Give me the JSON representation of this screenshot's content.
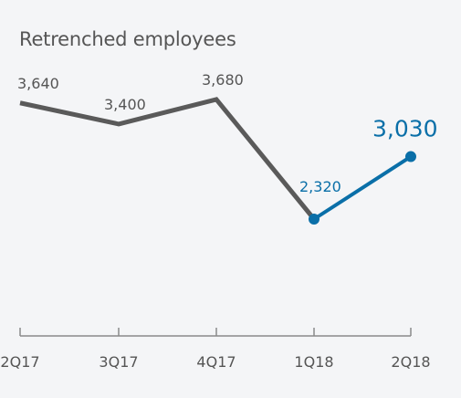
{
  "chart_data": {
    "type": "line",
    "title": "Retrenched employees",
    "xlabel": "",
    "ylabel": "",
    "categories": [
      "2Q17",
      "3Q17",
      "4Q17",
      "1Q18",
      "2Q18"
    ],
    "values": [
      3640,
      3400,
      3680,
      2320,
      3030
    ],
    "value_labels": [
      "3,640",
      "3,400",
      "3,680",
      "2,320",
      "3,030"
    ],
    "grid": false,
    "legend": "none",
    "highlight_from_index": 3,
    "colors": {
      "base_line": "#5a5a5a",
      "highlight": "#0a6fa8",
      "axis": "#8a8a8a",
      "text": "#555555",
      "background": "#f4f5f7"
    }
  }
}
